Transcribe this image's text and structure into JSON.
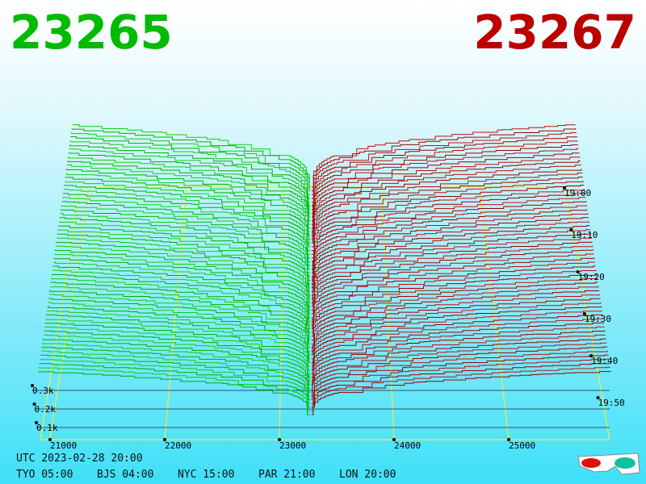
{
  "bid_price": 23265,
  "ask_price": 23267,
  "price_axis": [
    21000,
    22000,
    23000,
    24000,
    25000
  ],
  "time_axis": [
    "19:00",
    "19:10",
    "19:20",
    "19:30",
    "19:40",
    "19:50"
  ],
  "volume_axis": [
    "0.3k",
    "0.2k",
    "0.1k"
  ],
  "utc": "UTC 2023-02-28 20:00",
  "clocks": [
    "TYO 05:00",
    "BJS 04:00",
    "NYC 15:00",
    "PAR 21:00",
    "LON 20:00"
  ]
}
